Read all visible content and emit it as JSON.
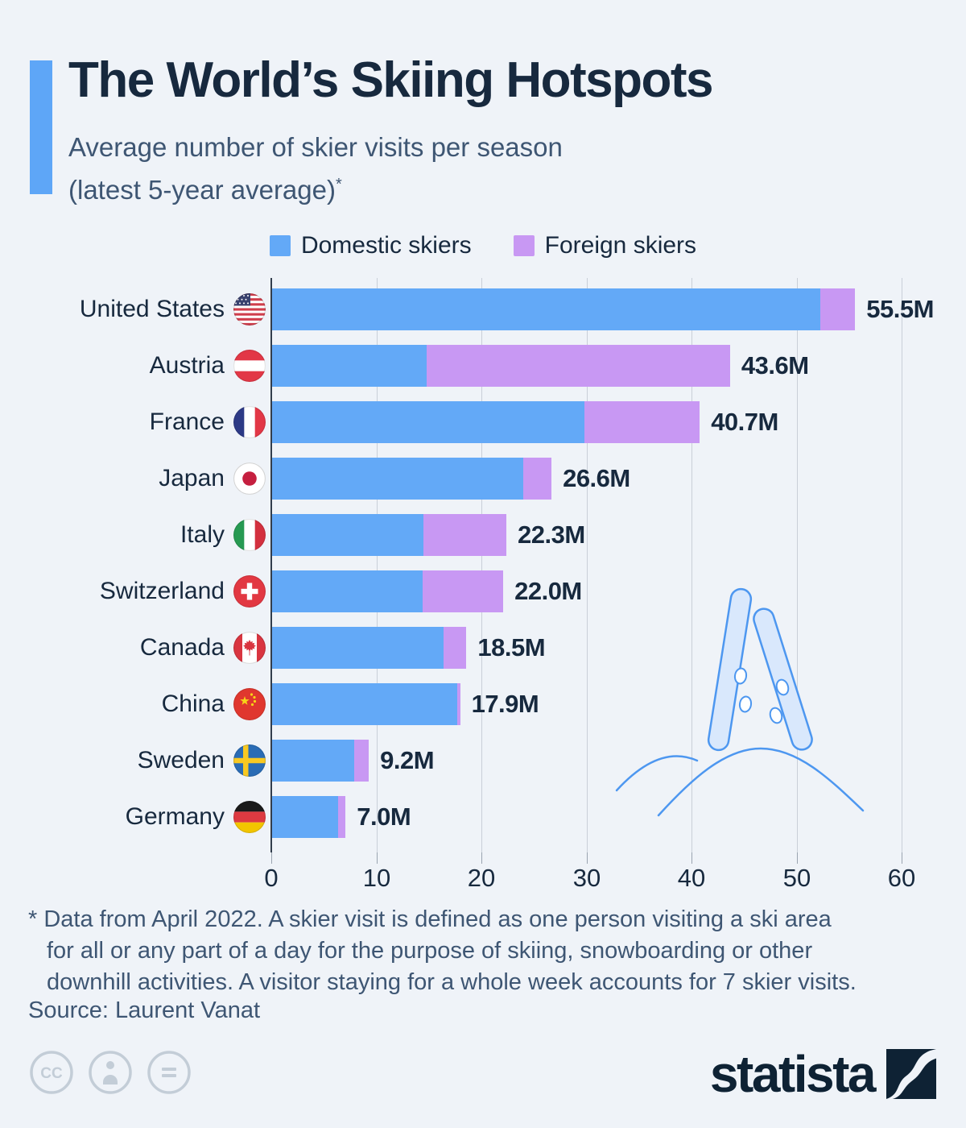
{
  "header": {
    "title": "The World’s Skiing Hotspots",
    "subtitle_line1": "Average number of skier visits per season",
    "subtitle_line2": "(latest 5-year average)",
    "subtitle_star": "*"
  },
  "legend": {
    "domestic_label": "Domestic skiers",
    "foreign_label": "Foreign skiers"
  },
  "colors": {
    "background": "#eff3f8",
    "accent_bar": "#5ea6f7",
    "domestic": "#63a9f7",
    "foreign": "#c898f3",
    "title_text": "#17293e",
    "muted_text": "#3e5673",
    "gridline": "#c9cfd8",
    "illustration_stroke": "#4d97f0"
  },
  "chart_data": {
    "type": "bar",
    "stacked": true,
    "orientation": "horizontal",
    "title": "The World’s Skiing Hotspots",
    "unit": "millions of skier visits per season",
    "xlim": [
      0,
      60
    ],
    "x_ticks": [
      0,
      10,
      20,
      30,
      40,
      50,
      60
    ],
    "grid": "vertical",
    "legend_position": "top",
    "categories": [
      "United States",
      "Austria",
      "France",
      "Japan",
      "Italy",
      "Switzerland",
      "Canada",
      "China",
      "Sweden",
      "Germany"
    ],
    "series": [
      {
        "name": "Domestic skiers",
        "color": "#63a9f7",
        "values": [
          52.2,
          14.7,
          29.7,
          23.9,
          14.4,
          14.3,
          16.3,
          17.6,
          7.8,
          6.3
        ]
      },
      {
        "name": "Foreign skiers",
        "color": "#c898f3",
        "values": [
          3.3,
          28.9,
          11.0,
          2.7,
          7.9,
          7.7,
          2.2,
          0.3,
          1.4,
          0.7
        ]
      }
    ],
    "totals": [
      55.5,
      43.6,
      40.7,
      26.6,
      22.3,
      22.0,
      18.5,
      17.9,
      9.2,
      7.0
    ],
    "rows": [
      {
        "country": "United States",
        "flag": "united-states",
        "domestic": 52.2,
        "foreign": 3.3,
        "total_label": "55.5M"
      },
      {
        "country": "Austria",
        "flag": "austria",
        "domestic": 14.7,
        "foreign": 28.9,
        "total_label": "43.6M"
      },
      {
        "country": "France",
        "flag": "france",
        "domestic": 29.7,
        "foreign": 11.0,
        "total_label": "40.7M"
      },
      {
        "country": "Japan",
        "flag": "japan",
        "domestic": 23.9,
        "foreign": 2.7,
        "total_label": "26.6M"
      },
      {
        "country": "Italy",
        "flag": "italy",
        "domestic": 14.4,
        "foreign": 7.9,
        "total_label": "22.3M"
      },
      {
        "country": "Switzerland",
        "flag": "switzerland",
        "domestic": 14.3,
        "foreign": 7.7,
        "total_label": "22.0M"
      },
      {
        "country": "Canada",
        "flag": "canada",
        "domestic": 16.3,
        "foreign": 2.2,
        "total_label": "18.5M"
      },
      {
        "country": "China",
        "flag": "china",
        "domestic": 17.6,
        "foreign": 0.3,
        "total_label": "17.9M"
      },
      {
        "country": "Sweden",
        "flag": "sweden",
        "domestic": 7.8,
        "foreign": 1.4,
        "total_label": "9.2M"
      },
      {
        "country": "Germany",
        "flag": "germany",
        "domestic": 6.3,
        "foreign": 0.7,
        "total_label": "7.0M"
      }
    ]
  },
  "footnote": {
    "line1": "* Data from April 2022. A skier visit is defined as one person visiting a ski area",
    "line2": "for all or any part of a day for the purpose of skiing, snowboarding or other",
    "line3": "downhill activities. A visitor staying for a whole week accounts for 7 skier visits.",
    "source": "Source: Laurent Vanat"
  },
  "footer": {
    "cc_label": "CC",
    "brand_text": "statista"
  }
}
